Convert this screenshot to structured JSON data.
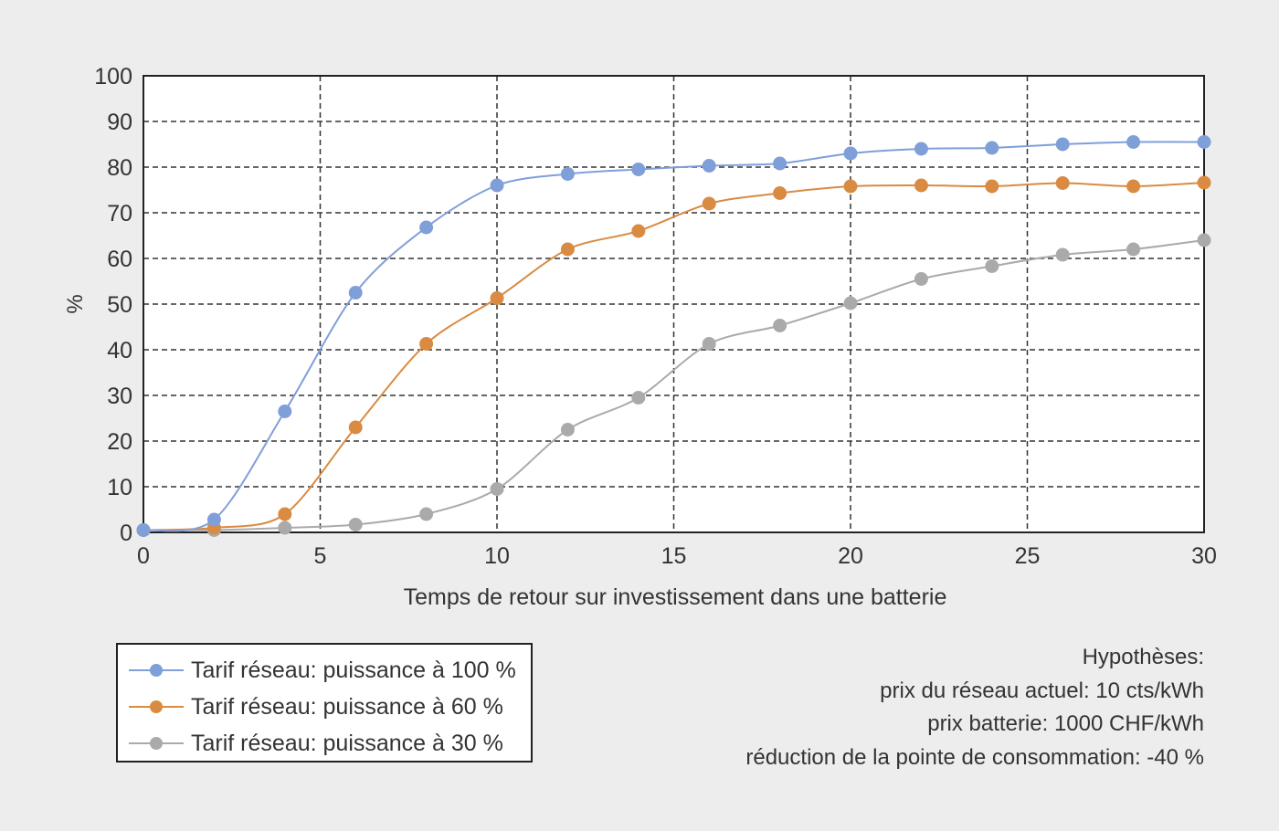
{
  "chart_data": {
    "type": "line",
    "title": "",
    "xlabel": "Temps de retour sur investissement dans une batterie",
    "ylabel": "%",
    "xlim": [
      0,
      30
    ],
    "ylim": [
      0,
      100
    ],
    "x_ticks": [
      0,
      5,
      10,
      15,
      20,
      25,
      30
    ],
    "y_ticks": [
      0,
      10,
      20,
      30,
      40,
      50,
      60,
      70,
      80,
      90,
      100
    ],
    "grid": true,
    "legend_position": "bottom-left",
    "x": [
      0,
      2,
      4,
      6,
      8,
      10,
      12,
      14,
      16,
      18,
      20,
      22,
      24,
      26,
      28,
      30
    ],
    "series": [
      {
        "name": "Tarif réseau: puissance à 100 %",
        "color": "#7f9fd9",
        "values": [
          0.5,
          2.8,
          26.5,
          52.5,
          66.8,
          76,
          78.5,
          79.5,
          80.3,
          80.8,
          83,
          84,
          84.2,
          85,
          85.5,
          85.5
        ]
      },
      {
        "name": "Tarif réseau: puissance à 60 %",
        "color": "#d98b42",
        "values": [
          0.5,
          1,
          4,
          23,
          41.3,
          51.3,
          62,
          66,
          72,
          74.3,
          75.8,
          76,
          75.8,
          76.5,
          75.8,
          76.6
        ]
      },
      {
        "name": "Tarif réseau: puissance à 30 %",
        "color": "#aaaaaa",
        "values": [
          0.5,
          0.5,
          1,
          1.7,
          4,
          9.5,
          22.5,
          29.5,
          41.3,
          45.3,
          50.2,
          55.5,
          58.3,
          60.8,
          62,
          64
        ]
      }
    ],
    "annotations": [
      "Hypothèses:",
      "prix du réseau actuel: 10 cts/kWh",
      "prix batterie: 1000 CHF/kWh",
      "réduction de la pointe de consommation: -40 %"
    ]
  },
  "legend": {
    "items": [
      {
        "label": "Tarif réseau: puissance à 100 %",
        "color": "#7f9fd9"
      },
      {
        "label": "Tarif réseau: puissance à 60 %",
        "color": "#d98b42"
      },
      {
        "label": "Tarif réseau: puissance à 30 %",
        "color": "#aaaaaa"
      }
    ]
  },
  "hypotheses": {
    "title": "Hypothèses:",
    "lines": [
      "prix du réseau actuel: 10 cts/kWh",
      "prix batterie: 1000 CHF/kWh",
      "réduction de la pointe de consommation: -40 %"
    ]
  }
}
